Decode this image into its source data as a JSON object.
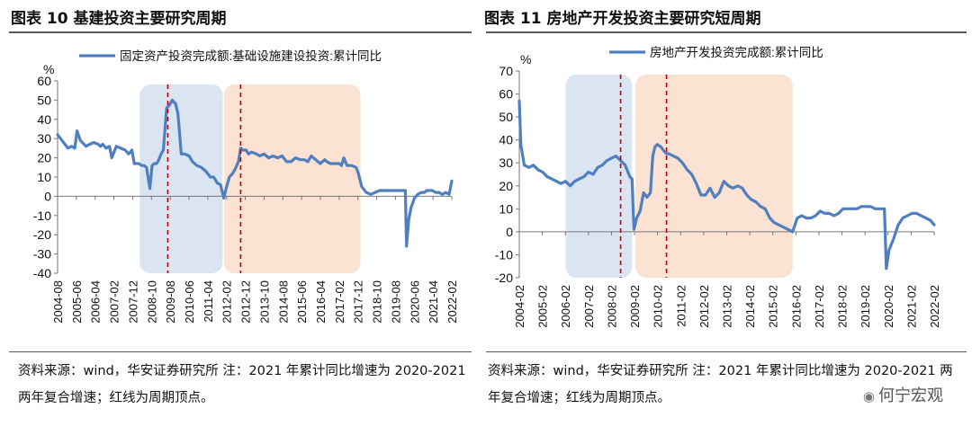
{
  "panels": {
    "left": {
      "title": "图表 10  基建投资主要研究周期",
      "source": "资料来源：wind，华安证券研究所  注：2021 年累计同比增速为 2020-2021 两年复合增速；红线为周期顶点。"
    },
    "right": {
      "title": "图表 11  房地产开发投资主要研究短周期",
      "source": "资料来源：wind，华安证券研究所  注：2021 年累计同比增速为 2020-2021 两年复合增速；红线为周期顶点。"
    }
  },
  "watermark": "何宁宏观",
  "colors": {
    "line": "#4f7fbf",
    "blue_band": "#dbe4f1",
    "orange_band": "#fbe2d2",
    "peak_line": "#c00000"
  },
  "chart_data": [
    {
      "type": "line",
      "unit": "%",
      "series_name": "固定资产投资完成额:基础设施建设投资:累计同比",
      "ylim": [
        -40,
        60
      ],
      "yticks": [
        -40,
        -30,
        -20,
        -10,
        0,
        10,
        20,
        30,
        40,
        50,
        60
      ],
      "xlim": [
        2004.583,
        2022.17
      ],
      "xtick_labels": [
        "2004-08",
        "2005-06",
        "2006-04",
        "2007-02",
        "2007-12",
        "2008-10",
        "2009-08",
        "2010-06",
        "2011-04",
        "2012-02",
        "2012-12",
        "2013-10",
        "2014-08",
        "2015-06",
        "2016-04",
        "2017-02",
        "2017-12",
        "2018-10",
        "2019-08",
        "2020-06",
        "2021-04",
        "2022-02"
      ],
      "shaded_periods": [
        {
          "from": 2008.25,
          "to": 2011.95,
          "color": "blue"
        },
        {
          "from": 2012.0,
          "to": 2018.1,
          "color": "orange"
        }
      ],
      "peak_lines": [
        2009.5,
        2012.75
      ],
      "x": [
        2004.583,
        2004.85,
        2005.05,
        2005.2,
        2005.35,
        2005.45,
        2005.6,
        2005.85,
        2006.0,
        2006.2,
        2006.4,
        2006.5,
        2006.6,
        2006.75,
        2006.9,
        2007.0,
        2007.2,
        2007.4,
        2007.6,
        2007.75,
        2007.9,
        2008.0,
        2008.2,
        2008.35,
        2008.45,
        2008.55,
        2008.7,
        2008.8,
        2008.9,
        2009.0,
        2009.05,
        2009.1,
        2009.2,
        2009.3,
        2009.45,
        2009.55,
        2009.7,
        2009.85,
        2009.95,
        2010.1,
        2010.15,
        2010.25,
        2010.45,
        2010.6,
        2010.8,
        2011.0,
        2011.2,
        2011.4,
        2011.55,
        2011.7,
        2011.85,
        2012.0,
        2012.1,
        2012.25,
        2012.4,
        2012.5,
        2012.65,
        2012.75,
        2012.85,
        2013.0,
        2013.1,
        2013.25,
        2013.45,
        2013.6,
        2013.8,
        2014.0,
        2014.2,
        2014.4,
        2014.6,
        2014.8,
        2015.0,
        2015.2,
        2015.4,
        2015.6,
        2015.75,
        2015.9,
        2016.1,
        2016.3,
        2016.5,
        2016.6,
        2016.75,
        2016.95,
        2017.15,
        2017.25,
        2017.35,
        2017.5,
        2017.7,
        2017.9,
        2018.0,
        2018.15,
        2018.35,
        2018.55,
        2018.75,
        2018.95,
        2019.2,
        2019.45,
        2019.7,
        2019.95,
        2020.1,
        2020.15,
        2020.25,
        2020.35,
        2020.5,
        2020.65,
        2020.8,
        2020.95,
        2021.05,
        2021.2,
        2021.3,
        2021.45,
        2021.6,
        2021.75,
        2021.9,
        2022.05,
        2022.17
      ],
      "y": [
        32,
        28,
        25,
        26,
        25,
        34,
        29,
        26,
        27,
        28,
        27,
        26,
        27,
        25,
        26,
        20,
        26,
        25,
        24,
        22,
        24,
        17,
        17,
        16,
        16,
        15,
        4,
        16,
        17,
        17,
        18,
        19,
        22,
        24,
        46,
        47,
        50,
        48,
        43,
        22,
        22,
        22,
        21,
        18,
        16,
        15,
        13,
        10,
        10,
        7,
        6,
        -1,
        4,
        10,
        12,
        14,
        18,
        25,
        24,
        24,
        22,
        23,
        22,
        21,
        22,
        20,
        21,
        20,
        21,
        18,
        18,
        20,
        19,
        19,
        18,
        21,
        19,
        17,
        19,
        18,
        17,
        17,
        17,
        16,
        20,
        16,
        16,
        15,
        12,
        5,
        2,
        1,
        2,
        3,
        3,
        3,
        3,
        3,
        3,
        -26,
        -12,
        -6,
        -1,
        1,
        2,
        2,
        3,
        3,
        3,
        2,
        2,
        1,
        2,
        1,
        8
      ]
    },
    {
      "type": "line",
      "unit": "%",
      "series_name": "房地产开发投资完成额:累计同比",
      "ylim": [
        -20,
        70
      ],
      "yticks": [
        -20,
        -10,
        0,
        10,
        20,
        30,
        40,
        50,
        60,
        70
      ],
      "xlim": [
        2004.083,
        2022.17
      ],
      "xtick_labels": [
        "2004-02",
        "2005-02",
        "2006-02",
        "2007-02",
        "2008-02",
        "2009-02",
        "2010-02",
        "2011-02",
        "2012-02",
        "2013-02",
        "2014-02",
        "2015-02",
        "2016-02",
        "2017-02",
        "2018-02",
        "2019-02",
        "2020-02",
        "2021-02",
        "2022-02"
      ],
      "shaded_periods": [
        {
          "from": 2006.1,
          "to": 2009.0,
          "color": "blue"
        },
        {
          "from": 2009.15,
          "to": 2016.0,
          "color": "orange"
        }
      ],
      "peak_lines": [
        2008.5,
        2010.5
      ],
      "x": [
        2004.083,
        2004.15,
        2004.3,
        2004.5,
        2004.7,
        2004.9,
        2005.1,
        2005.3,
        2005.5,
        2005.7,
        2005.9,
        2006.1,
        2006.3,
        2006.5,
        2006.7,
        2006.9,
        2007.1,
        2007.3,
        2007.5,
        2007.7,
        2007.9,
        2008.1,
        2008.3,
        2008.5,
        2008.7,
        2008.9,
        2009.0,
        2009.083,
        2009.2,
        2009.35,
        2009.5,
        2009.65,
        2009.8,
        2009.9,
        2010.0,
        2010.1,
        2010.25,
        2010.4,
        2010.5,
        2010.6,
        2010.8,
        2011.0,
        2011.2,
        2011.4,
        2011.6,
        2011.8,
        2012.0,
        2012.2,
        2012.4,
        2012.6,
        2012.8,
        2013.0,
        2013.2,
        2013.4,
        2013.6,
        2013.8,
        2014.0,
        2014.2,
        2014.4,
        2014.6,
        2014.8,
        2015.0,
        2015.2,
        2015.4,
        2015.6,
        2015.8,
        2016.0,
        2016.2,
        2016.4,
        2016.6,
        2016.8,
        2017.0,
        2017.2,
        2017.4,
        2017.6,
        2017.8,
        2018.0,
        2018.2,
        2018.4,
        2018.6,
        2018.8,
        2019.0,
        2019.2,
        2019.4,
        2019.6,
        2019.8,
        2020.0,
        2020.083,
        2020.2,
        2020.4,
        2020.6,
        2020.8,
        2021.0,
        2021.2,
        2021.4,
        2021.6,
        2021.8,
        2022.0,
        2022.17
      ],
      "y": [
        57,
        38,
        29,
        28,
        29,
        27,
        26,
        24,
        23,
        22,
        21,
        22,
        20,
        22,
        23,
        24,
        26,
        25,
        28,
        29,
        31,
        32,
        33,
        31,
        29,
        24,
        23,
        1,
        6,
        9,
        17,
        15,
        17,
        33,
        37,
        38,
        37,
        35,
        34,
        34,
        33,
        32,
        30,
        27,
        25,
        21,
        16,
        16,
        19,
        15,
        17,
        22,
        20,
        19,
        20,
        19,
        16,
        14,
        13,
        11,
        10,
        6,
        4,
        3,
        2,
        1,
        0,
        6,
        7,
        6,
        6,
        7,
        9,
        8,
        8,
        7,
        8,
        10,
        10,
        10,
        10,
        11,
        11,
        11,
        10,
        10,
        10,
        -16,
        -8,
        -3,
        3,
        6,
        7,
        8,
        8,
        7,
        6,
        5,
        3
      ]
    }
  ]
}
